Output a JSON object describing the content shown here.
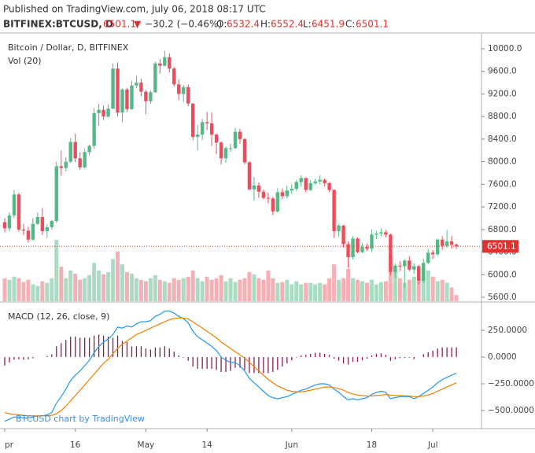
{
  "header": {
    "published": "Published on TradingView.com, July 06, 2018 08:17 UTC",
    "symbol": "BITFINEX:BTCUSD, D",
    "arrow": "▼",
    "change": "−30.2 (−0.46%)",
    "o": "O:",
    "h": "H:",
    "l": "L:",
    "c": "C:",
    "watermark": "BTCUSD chart by TradingView"
  },
  "chart_data": [
    {
      "type": "candlestick",
      "title": "Bitcoin / Dollar, D, BITFINEX",
      "volume_title": "Vol (20)",
      "up_color": "#53b987",
      "down_color": "#eb4d5c",
      "volume_up_color": "#a9dcc3",
      "volume_down_color": "#f5b0b6",
      "categories": [
        "pr",
        null,
        null,
        null,
        null,
        null,
        null,
        null,
        null,
        null,
        null,
        null,
        null,
        null,
        null,
        "16",
        null,
        null,
        null,
        null,
        null,
        null,
        null,
        null,
        null,
        null,
        null,
        null,
        null,
        null,
        "May",
        null,
        null,
        null,
        null,
        null,
        null,
        null,
        null,
        null,
        null,
        null,
        null,
        "14",
        null,
        null,
        null,
        null,
        null,
        null,
        null,
        null,
        null,
        null,
        null,
        null,
        null,
        null,
        null,
        null,
        null,
        "Jun",
        null,
        null,
        null,
        null,
        null,
        null,
        null,
        null,
        null,
        null,
        null,
        null,
        null,
        null,
        null,
        null,
        "18",
        null,
        null,
        null,
        null,
        null,
        null,
        null,
        null,
        null,
        null,
        null,
        null,
        "Jul",
        null,
        null,
        null,
        null,
        null
      ],
      "open": [
        6930,
        6820,
        7050,
        7420,
        6800,
        6780,
        6620,
        6900,
        7020,
        6770,
        6840,
        6950,
        7920,
        7890,
        8000,
        8350,
        8060,
        7900,
        8170,
        8280,
        8860,
        8920,
        8800,
        8940,
        9650,
        8870,
        9280,
        8930,
        9350,
        9400,
        9240,
        9070,
        9230,
        9740,
        9700,
        9850,
        9650,
        9370,
        9200,
        9320,
        9030,
        8440,
        8480,
        8700,
        8680,
        8480,
        8340,
        8060,
        8240,
        8240,
        8530,
        8400,
        7990,
        7510,
        7580,
        7470,
        7360,
        7350,
        7120,
        7460,
        7390,
        7490,
        7520,
        7640,
        7710,
        7500,
        7620,
        7650,
        7680,
        7620,
        7500,
        6770,
        6870,
        6540,
        6310,
        6640,
        6400,
        6490,
        6460,
        6710,
        6730,
        6750,
        6710,
        6050,
        6160,
        6150,
        6250,
        6090,
        6150,
        5890,
        6210,
        6390,
        6360,
        6620,
        6510,
        6590,
        6532.4
      ],
      "high": [
        7000,
        7100,
        7500,
        7450,
        6900,
        6850,
        7000,
        7100,
        7180,
        6890,
        6970,
        8000,
        8200,
        8080,
        8420,
        8500,
        8170,
        8230,
        8300,
        8950,
        9030,
        8990,
        9020,
        9740,
        9760,
        9300,
        9310,
        9430,
        9520,
        9470,
        9270,
        9260,
        9770,
        9820,
        9960,
        9920,
        9680,
        9460,
        9360,
        9370,
        9040,
        8650,
        8760,
        8880,
        8870,
        8500,
        8360,
        8270,
        8320,
        8600,
        8580,
        8420,
        8010,
        7730,
        7630,
        7510,
        7450,
        7380,
        7530,
        7530,
        7580,
        7600,
        7680,
        7760,
        7720,
        7670,
        7700,
        7760,
        7700,
        7640,
        7510,
        6900,
        6880,
        6590,
        6680,
        6660,
        6560,
        6550,
        6800,
        6780,
        6820,
        6790,
        6730,
        6200,
        6240,
        6270,
        6330,
        6200,
        6170,
        6280,
        6460,
        6440,
        6640,
        6680,
        6790,
        6690,
        6552.4
      ],
      "low": [
        6750,
        6770,
        7010,
        6760,
        6700,
        6570,
        6600,
        6880,
        6700,
        6650,
        6800,
        6920,
        7750,
        7830,
        7980,
        7990,
        7860,
        7880,
        8120,
        8230,
        8630,
        8740,
        8780,
        8930,
        8800,
        8700,
        8880,
        8920,
        9300,
        9160,
        8840,
        9020,
        9220,
        9560,
        9690,
        9580,
        9330,
        9090,
        9060,
        8980,
        8380,
        8200,
        8380,
        8560,
        8280,
        8130,
        7950,
        7980,
        8170,
        8230,
        8320,
        7950,
        7490,
        7310,
        7360,
        7330,
        7260,
        7050,
        7100,
        7340,
        7350,
        7430,
        7480,
        7560,
        7460,
        7480,
        7590,
        7600,
        7560,
        7460,
        6650,
        6670,
        6480,
        6120,
        6270,
        6380,
        6380,
        6420,
        6400,
        6630,
        6680,
        6660,
        5990,
        5950,
        6060,
        5760,
        6060,
        6020,
        5830,
        5850,
        6180,
        6280,
        6330,
        6440,
        6480,
        6460,
        6451.9
      ],
      "close": [
        6820,
        7050,
        7420,
        6800,
        6780,
        6620,
        6900,
        7020,
        6770,
        6840,
        6950,
        7920,
        7890,
        8000,
        8350,
        8060,
        7900,
        8170,
        8280,
        8860,
        8920,
        8800,
        8940,
        9650,
        8870,
        9280,
        8930,
        9350,
        9400,
        9240,
        9070,
        9230,
        9740,
        9700,
        9850,
        9650,
        9370,
        9200,
        9320,
        9030,
        8440,
        8480,
        8700,
        8680,
        8480,
        8340,
        8060,
        8240,
        8240,
        8530,
        8400,
        7990,
        7510,
        7580,
        7470,
        7360,
        7350,
        7120,
        7460,
        7390,
        7490,
        7520,
        7640,
        7710,
        7500,
        7620,
        7650,
        7680,
        7620,
        7500,
        6770,
        6870,
        6540,
        6310,
        6640,
        6400,
        6490,
        6460,
        6710,
        6730,
        6750,
        6710,
        6050,
        6160,
        6150,
        6250,
        6090,
        6150,
        5890,
        6210,
        6390,
        6360,
        6620,
        6510,
        6590,
        6530,
        6501.1
      ],
      "volume": [
        30,
        28,
        32,
        30,
        25,
        28,
        22,
        20,
        26,
        24,
        30,
        80,
        45,
        30,
        40,
        36,
        28,
        30,
        34,
        50,
        40,
        35,
        38,
        55,
        65,
        48,
        38,
        36,
        30,
        28,
        26,
        30,
        34,
        28,
        26,
        24,
        30,
        28,
        30,
        32,
        40,
        30,
        26,
        32,
        28,
        30,
        34,
        26,
        30,
        25,
        28,
        30,
        38,
        35,
        30,
        28,
        40,
        30,
        24,
        25,
        28,
        22,
        26,
        22,
        24,
        24,
        22,
        24,
        22,
        30,
        48,
        28,
        30,
        42,
        30,
        28,
        26,
        24,
        28,
        22,
        25,
        26,
        60,
        40,
        30,
        24,
        28,
        32,
        26,
        30,
        40,
        32,
        26,
        28,
        24,
        18,
        8
      ],
      "ylim": [
        5530,
        10237
      ],
      "yticks": [
        {
          "value": 5600,
          "label": "5600.0"
        },
        {
          "value": 6000,
          "label": "6000.0"
        },
        {
          "value": 6400,
          "label": "6400.0"
        },
        {
          "value": 6800,
          "label": "6800.0"
        },
        {
          "value": 7200,
          "label": "7200.0"
        },
        {
          "value": 7600,
          "label": "7600.0"
        },
        {
          "value": 8000,
          "label": "8000.0"
        },
        {
          "value": 8400,
          "label": "8400.0"
        },
        {
          "value": 8800,
          "label": "8800.0"
        },
        {
          "value": 9200,
          "label": "9200.0"
        },
        {
          "value": 9600,
          "label": "9600.0"
        },
        {
          "value": 10000,
          "label": "10000.0"
        }
      ]
    },
    {
      "type": "macd",
      "title": "MACD (12, 26, close, 9)",
      "series": [
        {
          "color": "#2196f3",
          "values": [
            -600,
            -580,
            -560,
            -560,
            -570,
            -570,
            -560,
            -550,
            -550,
            -540,
            -520,
            -430,
            -370,
            -300,
            -220,
            -170,
            -130,
            -80,
            -30,
            40,
            100,
            140,
            170,
            210,
            280,
            270,
            290,
            280,
            310,
            330,
            330,
            340,
            380,
            400,
            430,
            430,
            410,
            380,
            360,
            320,
            240,
            190,
            160,
            130,
            100,
            60,
            0,
            -30,
            -50,
            -50,
            -80,
            -130,
            -200,
            -240,
            -280,
            -320,
            -360,
            -380,
            -390,
            -380,
            -370,
            -350,
            -330,
            -310,
            -300,
            -280,
            -260,
            -250,
            -250,
            -260,
            -300,
            -330,
            -370,
            -400,
            -390,
            -400,
            -390,
            -380,
            -350,
            -330,
            -320,
            -330,
            -390,
            -380,
            -370,
            -370,
            -370,
            -390,
            -370,
            -340,
            -310,
            -280,
            -240,
            -210,
            -190,
            -170,
            -150
          ]
        },
        {
          "color": "#f57c00",
          "values": [
            -520,
            -530,
            -535,
            -540,
            -545,
            -550,
            -550,
            -550,
            -550,
            -550,
            -545,
            -530,
            -500,
            -460,
            -410,
            -360,
            -310,
            -260,
            -210,
            -160,
            -110,
            -60,
            -20,
            30,
            80,
            120,
            150,
            180,
            210,
            230,
            250,
            270,
            290,
            310,
            330,
            350,
            360,
            365,
            365,
            355,
            330,
            300,
            270,
            240,
            210,
            180,
            140,
            110,
            80,
            50,
            20,
            -10,
            -50,
            -90,
            -130,
            -170,
            -210,
            -240,
            -270,
            -290,
            -310,
            -320,
            -325,
            -325,
            -320,
            -310,
            -300,
            -290,
            -280,
            -280,
            -285,
            -295,
            -310,
            -330,
            -345,
            -355,
            -360,
            -365,
            -365,
            -360,
            -355,
            -350,
            -355,
            -360,
            -360,
            -362,
            -365,
            -370,
            -370,
            -365,
            -355,
            -340,
            -320,
            -300,
            -280,
            -260,
            -240
          ]
        }
      ],
      "histogram": {
        "color": "#8e1b5a",
        "values": [
          -80,
          -50,
          -25,
          -20,
          -25,
          -20,
          -10,
          0,
          0,
          10,
          25,
          100,
          130,
          160,
          190,
          190,
          180,
          180,
          180,
          200,
          210,
          200,
          190,
          180,
          200,
          150,
          140,
          100,
          100,
          100,
          80,
          70,
          90,
          90,
          100,
          80,
          50,
          15,
          -5,
          -35,
          -90,
          -110,
          -110,
          -110,
          -110,
          -120,
          -140,
          -140,
          -130,
          -100,
          -100,
          -120,
          -150,
          -150,
          -150,
          -150,
          -150,
          -140,
          -120,
          -90,
          -60,
          -30,
          -5,
          15,
          20,
          30,
          40,
          40,
          30,
          20,
          -15,
          -35,
          -60,
          -70,
          -45,
          -45,
          -30,
          -15,
          15,
          30,
          35,
          20,
          -35,
          -20,
          -10,
          -8,
          -5,
          -20,
          0,
          25,
          45,
          60,
          80,
          90,
          90,
          90,
          90
        ]
      },
      "ylim": [
        -669,
        507
      ],
      "yticks": [
        {
          "value": 250,
          "label": "250.0000"
        },
        {
          "value": 0,
          "label": "0.0000"
        },
        {
          "value": -250,
          "label": "−250.0000"
        },
        {
          "value": -500,
          "label": "−500.0000"
        }
      ]
    }
  ]
}
